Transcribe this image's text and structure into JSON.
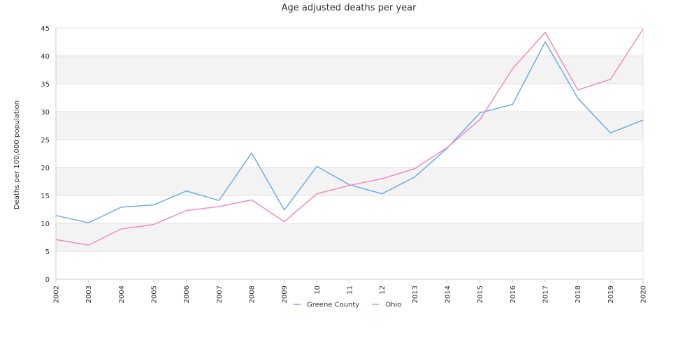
{
  "chart_data": {
    "type": "line",
    "title": "Age adjusted deaths per year",
    "xlabel": "",
    "ylabel": "Deaths per 100,000 population",
    "ylim": [
      0,
      45
    ],
    "yticks": [
      0,
      5,
      10,
      15,
      20,
      25,
      30,
      35,
      40,
      45
    ],
    "categories": [
      "2002",
      "2003",
      "2004",
      "2005",
      "2006",
      "2007",
      "2008",
      "2009",
      "10",
      "11",
      "12",
      "2013",
      "2014",
      "2015",
      "2016",
      "2017",
      "2018",
      "2019",
      "2020"
    ],
    "grid": true,
    "legend_position": "bottom",
    "series": [
      {
        "name": "Greene County",
        "color": "#6aaee8",
        "values": [
          11.4,
          10.1,
          12.9,
          13.3,
          15.8,
          14.1,
          22.6,
          12.4,
          20.2,
          16.9,
          15.3,
          18.3,
          23.5,
          29.8,
          31.3,
          42.5,
          32.4,
          26.2,
          28.5
        ]
      },
      {
        "name": "Ohio",
        "color": "#f08cbe",
        "values": [
          7.1,
          6.1,
          9.0,
          9.8,
          12.3,
          13.0,
          14.2,
          10.3,
          15.3,
          16.8,
          18.0,
          19.8,
          23.6,
          28.6,
          37.7,
          44.2,
          33.9,
          35.8,
          44.8
        ]
      }
    ]
  }
}
